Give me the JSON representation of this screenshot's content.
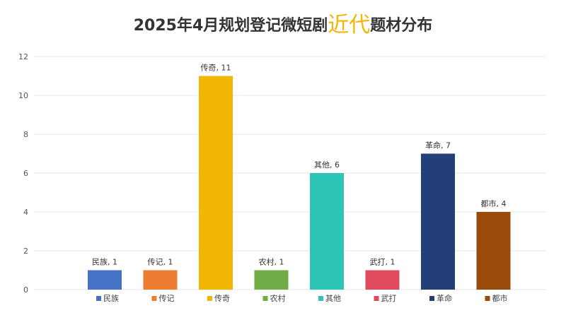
{
  "chart_data": {
    "type": "bar",
    "title_before": "2025年4月规划登记微短剧",
    "title_highlight": "近代",
    "title_after": "题材分布",
    "categories": [
      "民族",
      "传记",
      "传奇",
      "农村",
      "其他",
      "武打",
      "革命",
      "都市"
    ],
    "values": [
      1,
      1,
      11,
      1,
      6,
      1,
      7,
      4
    ],
    "colors": [
      "#4472c4",
      "#ed7d31",
      "#f2b705",
      "#70ad47",
      "#2ec4b6",
      "#e04a5f",
      "#223f7a",
      "#9a4a0a"
    ],
    "data_labels": [
      "民族, 1",
      "传记, 1",
      "传奇, 11",
      "农村, 1",
      "其他, 6",
      "武打, 1",
      "革命, 7",
      "都市, 4"
    ],
    "ylim": [
      0,
      12
    ],
    "yticks": [
      0,
      2,
      4,
      6,
      8,
      10,
      12
    ],
    "highlight_color": "#f2b705",
    "grid": true,
    "legend_position": "bottom"
  }
}
